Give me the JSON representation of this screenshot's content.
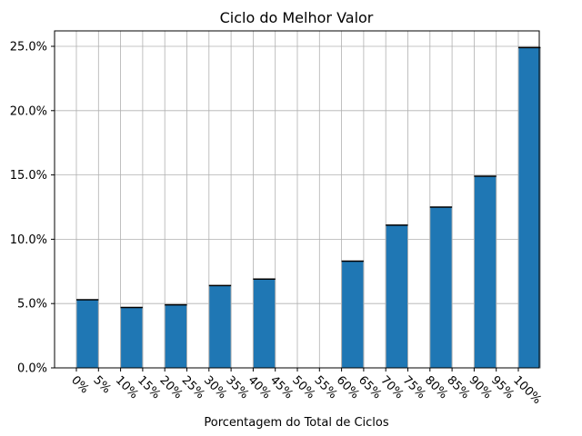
{
  "chart_data": {
    "type": "bar",
    "title": "Ciclo do Melhor Valor",
    "xlabel": "Porcentagem do Total de Ciclos",
    "ylabel": "",
    "categories": [
      "0%",
      "5%",
      "10%",
      "15%",
      "20%",
      "25%",
      "30%",
      "35%",
      "40%",
      "45%",
      "50%",
      "55%",
      "60%",
      "65%",
      "70%",
      "75%",
      "80%",
      "85%",
      "90%",
      "95%",
      "100%"
    ],
    "values": [
      5.3,
      0,
      4.7,
      0,
      4.9,
      0,
      6.4,
      0,
      6.9,
      0,
      0,
      0,
      8.3,
      0,
      11.1,
      0,
      12.5,
      0,
      14.9,
      0,
      24.9
    ],
    "ylim": [
      0,
      26.2
    ],
    "yticks": [
      0,
      5,
      10,
      15,
      20,
      25
    ],
    "ytick_labels": [
      "0.0%",
      "5.0%",
      "10.0%",
      "15.0%",
      "20.0%",
      "25.0%"
    ],
    "grid": true,
    "bar_color": "#1f77b4",
    "edge_color": "#000000"
  }
}
